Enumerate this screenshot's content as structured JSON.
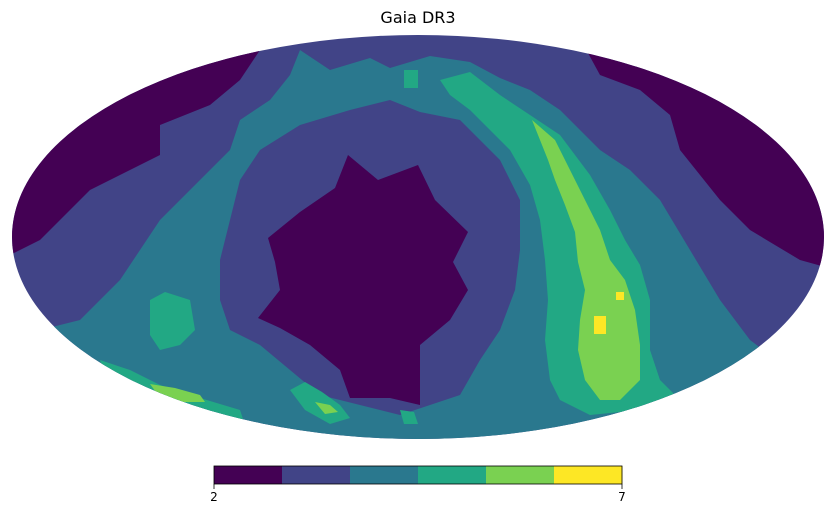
{
  "title": "Gaia DR3",
  "colorbar": {
    "min_label": "2",
    "max_label": "7",
    "min": 2,
    "max": 7,
    "levels": 6,
    "colors": [
      "#440154",
      "#414487",
      "#2a788e",
      "#22a884",
      "#7ad151",
      "#fde725"
    ]
  },
  "map": {
    "projection": "mollweide",
    "colormap": "viridis"
  }
}
